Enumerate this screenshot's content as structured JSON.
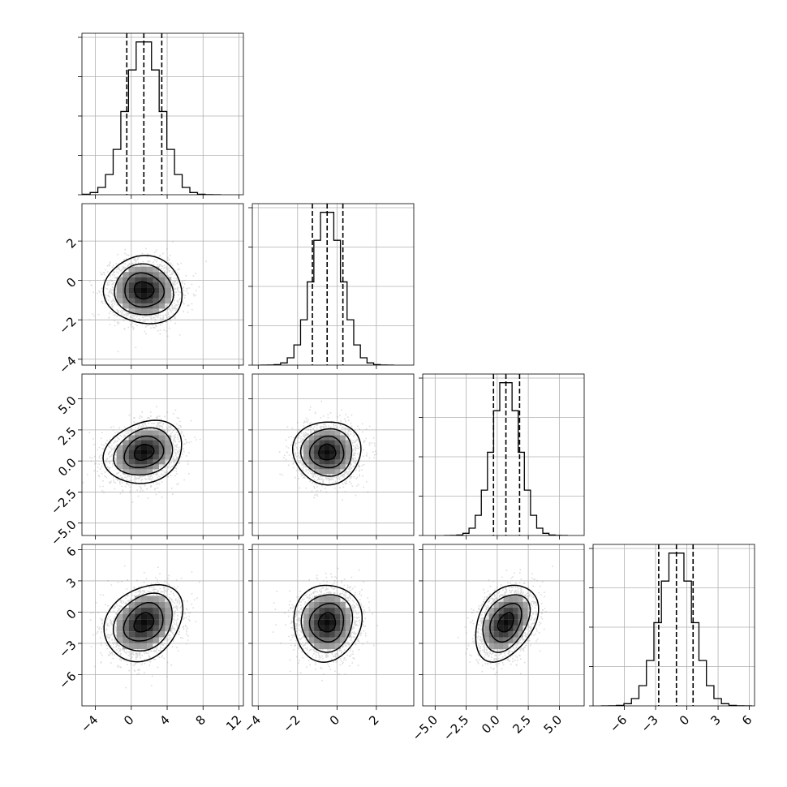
{
  "chart_data": {
    "type": "corner",
    "n_params": 4,
    "colors": {
      "line": "#000000",
      "grid": "#b0b0b0",
      "points": "#9a9a9a",
      "background": "#ffffff"
    },
    "grid": true,
    "axes": [
      {
        "range": [
          -5.5,
          12.5
        ],
        "ticks": [
          -4,
          0,
          4,
          8,
          12
        ],
        "tick_labels": [
          "−4",
          "0",
          "4",
          "8",
          "12"
        ]
      },
      {
        "range": [
          -4.3,
          3.9
        ],
        "ticks": [
          -4,
          -2,
          0,
          2
        ],
        "tick_labels": [
          "−4",
          "−2",
          "0",
          "2"
        ]
      },
      {
        "range": [
          -6.0,
          7.0
        ],
        "ticks": [
          -5.0,
          -2.5,
          0.0,
          2.5,
          5.0
        ],
        "tick_labels": [
          "−5.0",
          "−2.5",
          "0.0",
          "2.5",
          "5.0"
        ]
      },
      {
        "range": [
          -9.0,
          6.5
        ],
        "ticks": [
          -6,
          -3,
          0,
          3,
          6
        ],
        "tick_labels": [
          "−6",
          "−3",
          "0",
          "3",
          "6"
        ]
      }
    ],
    "marginals": [
      {
        "param": 0,
        "mean": 1.4,
        "sd": 1.9,
        "quantiles": [
          -0.5,
          1.4,
          3.4
        ]
      },
      {
        "param": 1,
        "mean": -0.5,
        "sd": 0.75,
        "quantiles": [
          -1.25,
          -0.5,
          0.3
        ]
      },
      {
        "param": 2,
        "mean": 0.7,
        "sd": 1.1,
        "quantiles": [
          -0.3,
          0.7,
          1.8
        ]
      },
      {
        "param": 3,
        "mean": -1.0,
        "sd": 1.6,
        "quantiles": [
          -2.7,
          -1.0,
          0.6
        ]
      }
    ],
    "correlations": [
      {
        "x": 0,
        "y": 1,
        "rho": -0.05
      },
      {
        "x": 0,
        "y": 2,
        "rho": 0.2
      },
      {
        "x": 1,
        "y": 2,
        "rho": 0.0
      },
      {
        "x": 0,
        "y": 3,
        "rho": 0.25
      },
      {
        "x": 1,
        "y": 3,
        "rho": 0.05
      },
      {
        "x": 2,
        "y": 3,
        "rho": 0.35
      }
    ],
    "hist_bins": 20,
    "contour_levels_sigma": [
      0.5,
      1.0,
      1.5,
      2.0
    ]
  }
}
